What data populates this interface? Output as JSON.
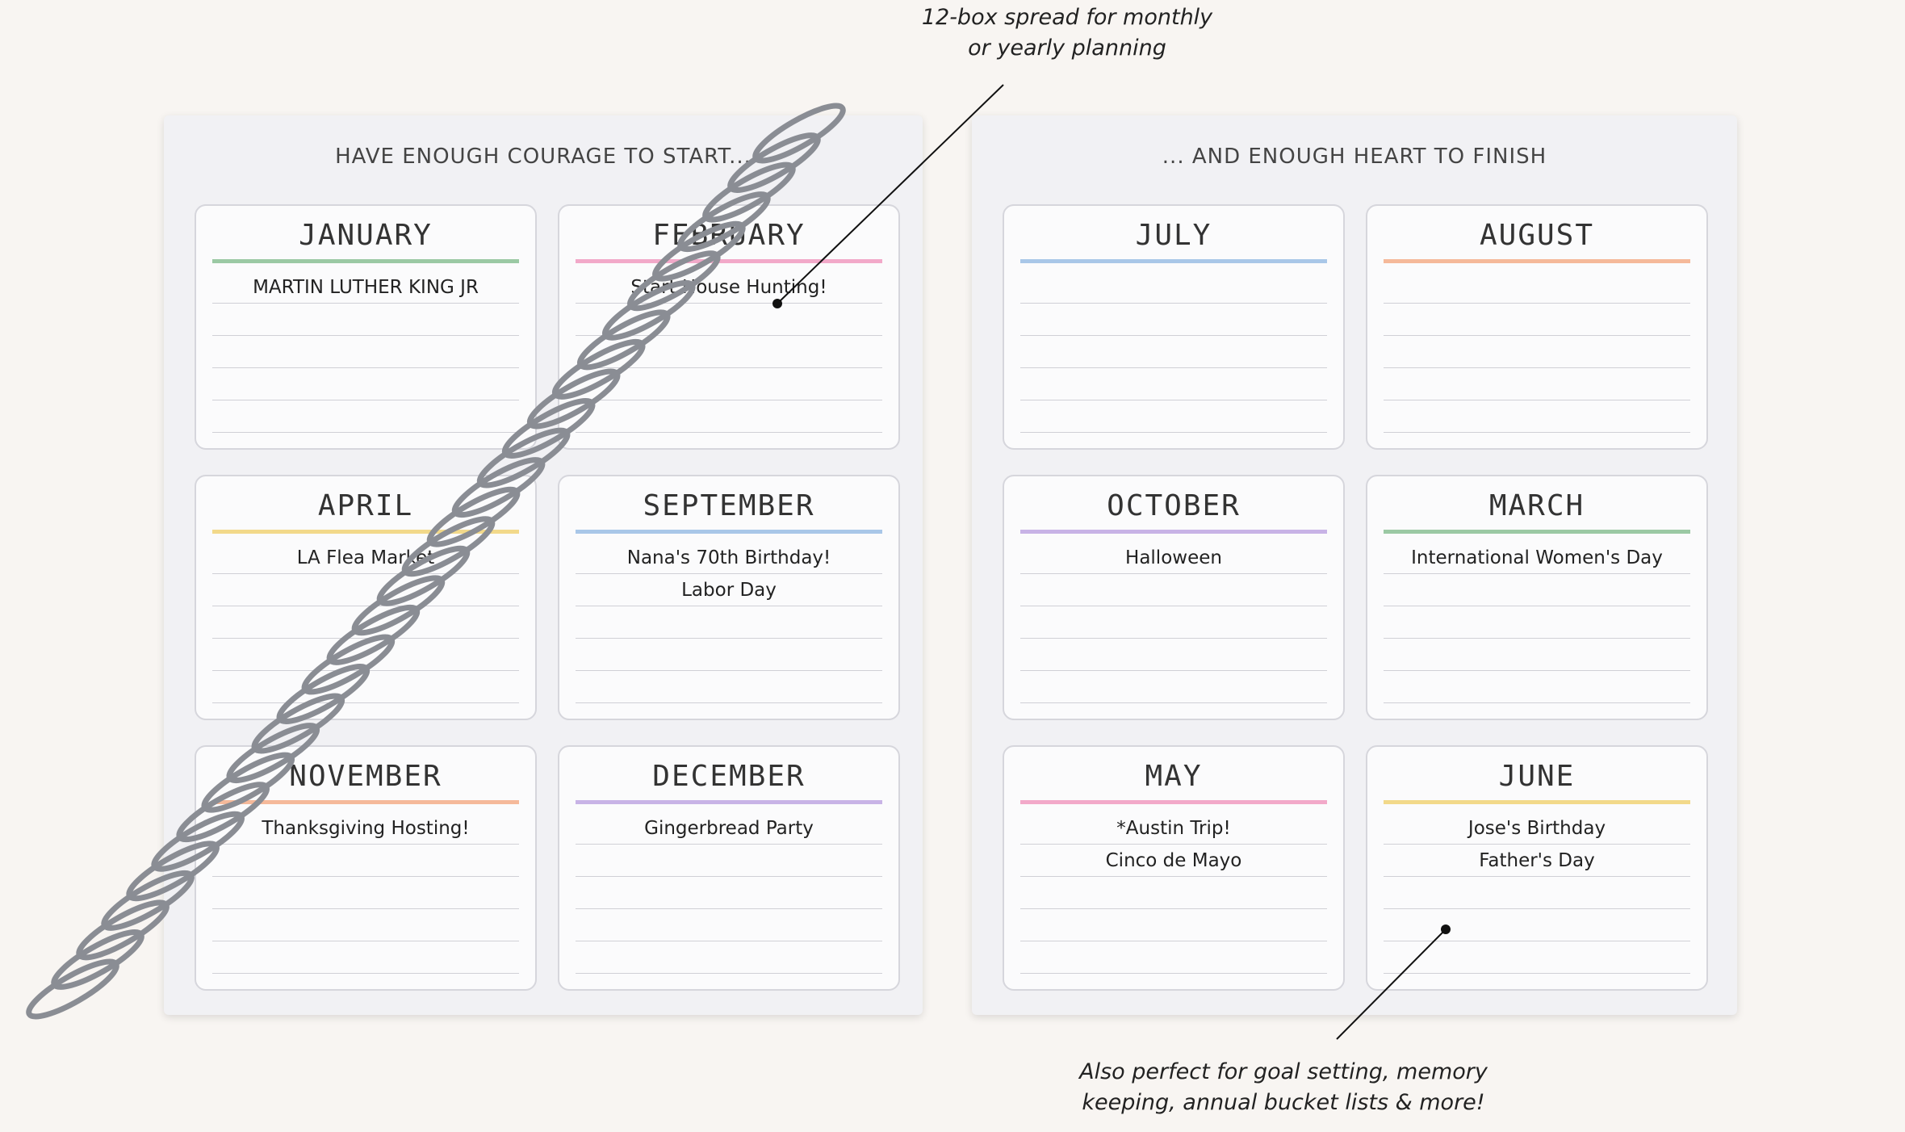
{
  "annotations": {
    "top": [
      "12-box spread for monthly",
      "or yearly planning"
    ],
    "bottom": [
      "Also perfect for goal setting, memory",
      "keeping, annual bucket lists & more!"
    ]
  },
  "left_page": {
    "heading": "HAVE ENOUGH COURAGE TO START...",
    "boxes": [
      {
        "month": "JANUARY",
        "notes": [
          "MARTIN LUTHER KING JR"
        ]
      },
      {
        "month": "FEBRUARY",
        "notes": [
          "Start House Hunting!"
        ]
      },
      {
        "month": "APRIL",
        "notes": [
          "LA Flea Market"
        ]
      },
      {
        "month": "SEPTEMBER",
        "notes": [
          "Nana's 70th Birthday!",
          "Labor Day"
        ]
      },
      {
        "month": "NOVEMBER",
        "notes": [
          "Thanksgiving Hosting!"
        ]
      },
      {
        "month": "DECEMBER",
        "notes": [
          "Gingerbread Party"
        ]
      }
    ]
  },
  "right_page": {
    "heading": "... AND ENOUGH HEART TO FINISH",
    "boxes": [
      {
        "month": "JULY",
        "notes": []
      },
      {
        "month": "AUGUST",
        "notes": []
      },
      {
        "month": "OCTOBER",
        "notes": [
          "Halloween"
        ]
      },
      {
        "month": "MARCH",
        "notes": [
          "International Women's Day"
        ]
      },
      {
        "month": "MAY",
        "notes": [
          "*Austin Trip!",
          "Cinco de Mayo"
        ]
      },
      {
        "month": "JUNE",
        "notes": [
          "Jose's Birthday",
          "Father's Day"
        ]
      }
    ]
  }
}
